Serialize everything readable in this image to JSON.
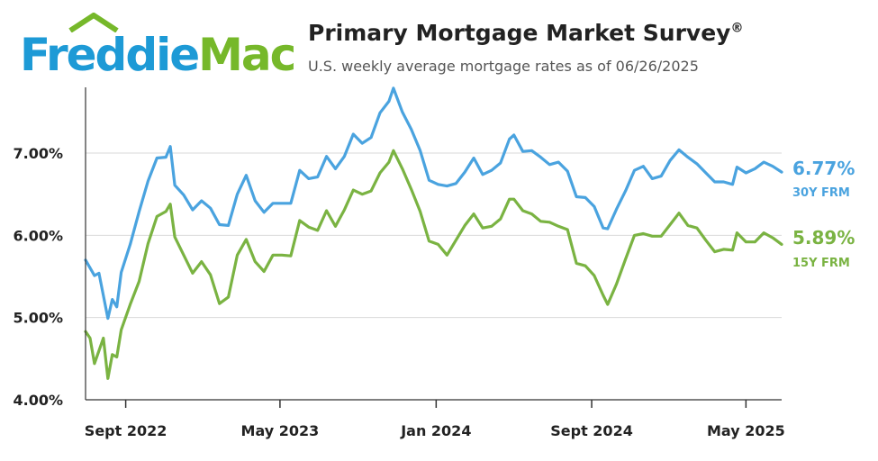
{
  "logo": {
    "word1": "Freddie",
    "word2": "Mac"
  },
  "header": {
    "title": "Primary Mortgage Market Survey",
    "title_mark": "®",
    "subtitle": "U.S. weekly average mortgage rates as of 06/26/2025"
  },
  "colors": {
    "series_30y": "#4aa3df",
    "series_15y": "#7ab342",
    "logo_blue": "#1d9ad6",
    "logo_green": "#76b82a",
    "grid": "#d9d9d9"
  },
  "chart_data": {
    "type": "line",
    "ylim": [
      4.0,
      7.8
    ],
    "yticks": [
      4.0,
      5.0,
      6.0,
      7.0
    ],
    "ytick_labels": [
      "4.00%",
      "5.00%",
      "6.00%",
      "7.00%"
    ],
    "xlim": [
      "2022-06-30",
      "2025-06-26"
    ],
    "xticks": [
      "2022-09-01",
      "2023-05-01",
      "2024-01-01",
      "2024-09-01",
      "2025-05-01"
    ],
    "xtick_labels": [
      "Sept 2022",
      "May 2023",
      "Jan 2024",
      "Sept 2024",
      "May 2025"
    ],
    "grid": true,
    "series": [
      {
        "name": "30Y FRM",
        "end_value_label": "6.77%",
        "points": [
          [
            "2022-06-30",
            5.7
          ],
          [
            "2022-07-14",
            5.51
          ],
          [
            "2022-07-21",
            5.54
          ],
          [
            "2022-08-04",
            4.99
          ],
          [
            "2022-08-11",
            5.22
          ],
          [
            "2022-08-18",
            5.13
          ],
          [
            "2022-08-25",
            5.55
          ],
          [
            "2022-09-08",
            5.89
          ],
          [
            "2022-09-22",
            6.29
          ],
          [
            "2022-10-06",
            6.66
          ],
          [
            "2022-10-20",
            6.94
          ],
          [
            "2022-11-03",
            6.95
          ],
          [
            "2022-11-10",
            7.08
          ],
          [
            "2022-11-17",
            6.61
          ],
          [
            "2022-12-01",
            6.49
          ],
          [
            "2022-12-15",
            6.31
          ],
          [
            "2022-12-29",
            6.42
          ],
          [
            "2023-01-12",
            6.33
          ],
          [
            "2023-01-26",
            6.13
          ],
          [
            "2023-02-09",
            6.12
          ],
          [
            "2023-02-23",
            6.5
          ],
          [
            "2023-03-09",
            6.73
          ],
          [
            "2023-03-23",
            6.42
          ],
          [
            "2023-04-06",
            6.28
          ],
          [
            "2023-04-20",
            6.39
          ],
          [
            "2023-05-04",
            6.39
          ],
          [
            "2023-05-18",
            6.39
          ],
          [
            "2023-06-01",
            6.79
          ],
          [
            "2023-06-15",
            6.69
          ],
          [
            "2023-06-29",
            6.71
          ],
          [
            "2023-07-13",
            6.96
          ],
          [
            "2023-07-27",
            6.81
          ],
          [
            "2023-08-10",
            6.96
          ],
          [
            "2023-08-24",
            7.23
          ],
          [
            "2023-09-07",
            7.12
          ],
          [
            "2023-09-21",
            7.19
          ],
          [
            "2023-10-05",
            7.49
          ],
          [
            "2023-10-19",
            7.63
          ],
          [
            "2023-10-26",
            7.79
          ],
          [
            "2023-11-09",
            7.5
          ],
          [
            "2023-11-23",
            7.29
          ],
          [
            "2023-12-07",
            7.03
          ],
          [
            "2023-12-21",
            6.67
          ],
          [
            "2024-01-04",
            6.62
          ],
          [
            "2024-01-18",
            6.6
          ],
          [
            "2024-02-01",
            6.63
          ],
          [
            "2024-02-15",
            6.77
          ],
          [
            "2024-02-29",
            6.94
          ],
          [
            "2024-03-14",
            6.74
          ],
          [
            "2024-03-28",
            6.79
          ],
          [
            "2024-04-11",
            6.88
          ],
          [
            "2024-04-25",
            7.17
          ],
          [
            "2024-05-02",
            7.22
          ],
          [
            "2024-05-16",
            7.02
          ],
          [
            "2024-05-30",
            7.03
          ],
          [
            "2024-06-13",
            6.95
          ],
          [
            "2024-06-27",
            6.86
          ],
          [
            "2024-07-11",
            6.89
          ],
          [
            "2024-07-25",
            6.78
          ],
          [
            "2024-08-08",
            6.47
          ],
          [
            "2024-08-22",
            6.46
          ],
          [
            "2024-09-05",
            6.35
          ],
          [
            "2024-09-19",
            6.09
          ],
          [
            "2024-09-26",
            6.08
          ],
          [
            "2024-10-10",
            6.32
          ],
          [
            "2024-10-24",
            6.54
          ],
          [
            "2024-11-07",
            6.79
          ],
          [
            "2024-11-21",
            6.84
          ],
          [
            "2024-12-05",
            6.69
          ],
          [
            "2024-12-19",
            6.72
          ],
          [
            "2025-01-02",
            6.91
          ],
          [
            "2025-01-16",
            7.04
          ],
          [
            "2025-01-30",
            6.95
          ],
          [
            "2025-02-13",
            6.87
          ],
          [
            "2025-02-27",
            6.76
          ],
          [
            "2025-03-13",
            6.65
          ],
          [
            "2025-03-27",
            6.65
          ],
          [
            "2025-04-10",
            6.62
          ],
          [
            "2025-04-17",
            6.83
          ],
          [
            "2025-05-01",
            6.76
          ],
          [
            "2025-05-15",
            6.81
          ],
          [
            "2025-05-29",
            6.89
          ],
          [
            "2025-06-12",
            6.84
          ],
          [
            "2025-06-26",
            6.77
          ]
        ]
      },
      {
        "name": "15Y FRM",
        "end_value_label": "5.89%",
        "points": [
          [
            "2022-06-30",
            4.83
          ],
          [
            "2022-07-07",
            4.75
          ],
          [
            "2022-07-14",
            4.44
          ],
          [
            "2022-07-28",
            4.75
          ],
          [
            "2022-08-04",
            4.26
          ],
          [
            "2022-08-11",
            4.55
          ],
          [
            "2022-08-18",
            4.52
          ],
          [
            "2022-08-25",
            4.85
          ],
          [
            "2022-09-08",
            5.16
          ],
          [
            "2022-09-22",
            5.44
          ],
          [
            "2022-10-06",
            5.9
          ],
          [
            "2022-10-20",
            6.23
          ],
          [
            "2022-11-03",
            6.29
          ],
          [
            "2022-11-10",
            6.38
          ],
          [
            "2022-11-17",
            5.98
          ],
          [
            "2022-12-01",
            5.76
          ],
          [
            "2022-12-15",
            5.54
          ],
          [
            "2022-12-29",
            5.68
          ],
          [
            "2023-01-12",
            5.52
          ],
          [
            "2023-01-26",
            5.17
          ],
          [
            "2023-02-09",
            5.25
          ],
          [
            "2023-02-23",
            5.76
          ],
          [
            "2023-03-09",
            5.95
          ],
          [
            "2023-03-23",
            5.68
          ],
          [
            "2023-04-06",
            5.56
          ],
          [
            "2023-04-20",
            5.76
          ],
          [
            "2023-05-04",
            5.76
          ],
          [
            "2023-05-18",
            5.75
          ],
          [
            "2023-06-01",
            6.18
          ],
          [
            "2023-06-15",
            6.1
          ],
          [
            "2023-06-29",
            6.06
          ],
          [
            "2023-07-13",
            6.3
          ],
          [
            "2023-07-27",
            6.11
          ],
          [
            "2023-08-10",
            6.31
          ],
          [
            "2023-08-24",
            6.55
          ],
          [
            "2023-09-07",
            6.5
          ],
          [
            "2023-09-21",
            6.54
          ],
          [
            "2023-10-05",
            6.76
          ],
          [
            "2023-10-19",
            6.89
          ],
          [
            "2023-10-26",
            7.03
          ],
          [
            "2023-11-09",
            6.81
          ],
          [
            "2023-11-23",
            6.56
          ],
          [
            "2023-12-07",
            6.29
          ],
          [
            "2023-12-21",
            5.93
          ],
          [
            "2024-01-04",
            5.89
          ],
          [
            "2024-01-18",
            5.76
          ],
          [
            "2024-02-01",
            5.94
          ],
          [
            "2024-02-15",
            6.12
          ],
          [
            "2024-02-29",
            6.26
          ],
          [
            "2024-03-14",
            6.09
          ],
          [
            "2024-03-28",
            6.11
          ],
          [
            "2024-04-11",
            6.2
          ],
          [
            "2024-04-25",
            6.44
          ],
          [
            "2024-05-02",
            6.44
          ],
          [
            "2024-05-16",
            6.3
          ],
          [
            "2024-05-30",
            6.26
          ],
          [
            "2024-06-13",
            6.17
          ],
          [
            "2024-06-27",
            6.16
          ],
          [
            "2024-07-11",
            6.11
          ],
          [
            "2024-07-25",
            6.07
          ],
          [
            "2024-08-08",
            5.66
          ],
          [
            "2024-08-22",
            5.63
          ],
          [
            "2024-09-05",
            5.51
          ],
          [
            "2024-09-19",
            5.27
          ],
          [
            "2024-09-26",
            5.16
          ],
          [
            "2024-10-10",
            5.41
          ],
          [
            "2024-10-24",
            5.71
          ],
          [
            "2024-11-07",
            6.0
          ],
          [
            "2024-11-21",
            6.02
          ],
          [
            "2024-12-05",
            5.99
          ],
          [
            "2024-12-19",
            5.99
          ],
          [
            "2025-01-02",
            6.13
          ],
          [
            "2025-01-16",
            6.27
          ],
          [
            "2025-01-30",
            6.12
          ],
          [
            "2025-02-13",
            6.09
          ],
          [
            "2025-02-27",
            5.94
          ],
          [
            "2025-03-13",
            5.8
          ],
          [
            "2025-03-27",
            5.83
          ],
          [
            "2025-04-10",
            5.82
          ],
          [
            "2025-04-17",
            6.03
          ],
          [
            "2025-05-01",
            5.92
          ],
          [
            "2025-05-15",
            5.92
          ],
          [
            "2025-05-29",
            6.03
          ],
          [
            "2025-06-12",
            5.97
          ],
          [
            "2025-06-26",
            5.89
          ]
        ]
      }
    ]
  }
}
